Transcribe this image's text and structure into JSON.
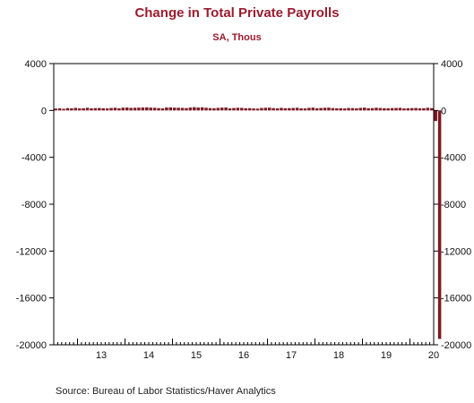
{
  "chart_data": {
    "type": "bar",
    "title": "Change in Total Private Payrolls",
    "subtitle": "SA, Thous",
    "source": "Source:  Bureau of Labor Statistics/Haver Analytics",
    "ylim": [
      -20000,
      4000
    ],
    "yticks": [
      4000,
      0,
      -4000,
      -8000,
      -12000,
      -16000,
      -20000
    ],
    "ytick_labels": [
      "4000",
      "0",
      "-4000",
      "-8000",
      "-12000",
      "-16000",
      "-20000"
    ],
    "x_range": [
      2012.5,
      2020.5
    ],
    "xtick_labels": [
      "13",
      "14",
      "15",
      "16",
      "17",
      "18",
      "19",
      "20"
    ],
    "xtick_years": [
      2013,
      2014,
      2015,
      2016,
      2017,
      2018,
      2019,
      2020
    ],
    "start": "2012-07",
    "bar_color": "#7b1a26",
    "values": [
      160,
      180,
      140,
      200,
      180,
      220,
      170,
      190,
      230,
      180,
      200,
      210,
      190,
      170,
      210,
      230,
      180,
      240,
      250,
      220,
      230,
      240,
      250,
      260,
      240,
      230,
      200,
      180,
      250,
      260,
      240,
      230,
      220,
      200,
      250,
      280,
      250,
      270,
      230,
      200,
      190,
      220,
      240,
      250,
      180,
      210,
      230,
      220,
      190,
      200,
      170,
      160,
      210,
      230,
      240,
      200,
      180,
      220,
      190,
      200,
      210,
      230,
      180,
      170,
      220,
      240,
      190,
      210,
      230,
      240,
      200,
      180,
      190,
      170,
      210,
      200,
      180,
      220,
      240,
      190,
      200,
      230,
      210,
      190,
      180,
      200,
      210,
      220,
      170,
      190,
      200,
      210,
      180,
      190,
      230,
      200,
      -900,
      -19500
    ]
  }
}
